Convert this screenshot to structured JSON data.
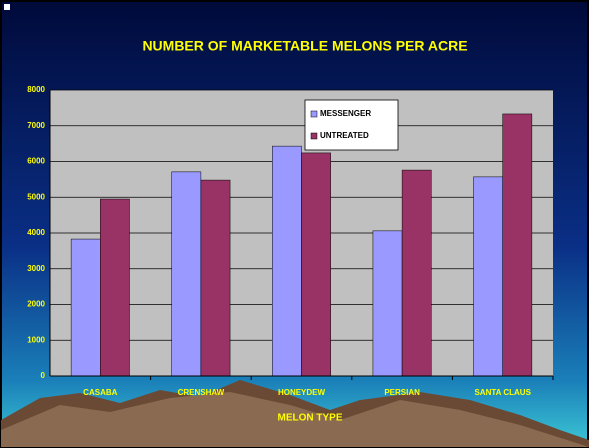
{
  "chart_data": {
    "type": "bar",
    "title": "NUMBER OF MARKETABLE MELONS PER ACRE",
    "x_label": "MELON TYPE",
    "categories": [
      "CASABA",
      "CRENSHAW",
      "HONEYDEW",
      "PERSIAN",
      "SANTA CLAUS"
    ],
    "series": [
      {
        "name": "MESSENGER",
        "color": "#9999ff",
        "values": [
          3830,
          5710,
          6430,
          4060,
          5570
        ]
      },
      {
        "name": "UNTREATED",
        "color": "#993366",
        "values": [
          4950,
          5480,
          6240,
          5760,
          7330
        ]
      }
    ],
    "ylim": [
      0,
      8000
    ],
    "yticks": [
      0,
      1000,
      2000,
      3000,
      4000,
      5000,
      6000,
      7000,
      8000
    ],
    "grid": true
  }
}
